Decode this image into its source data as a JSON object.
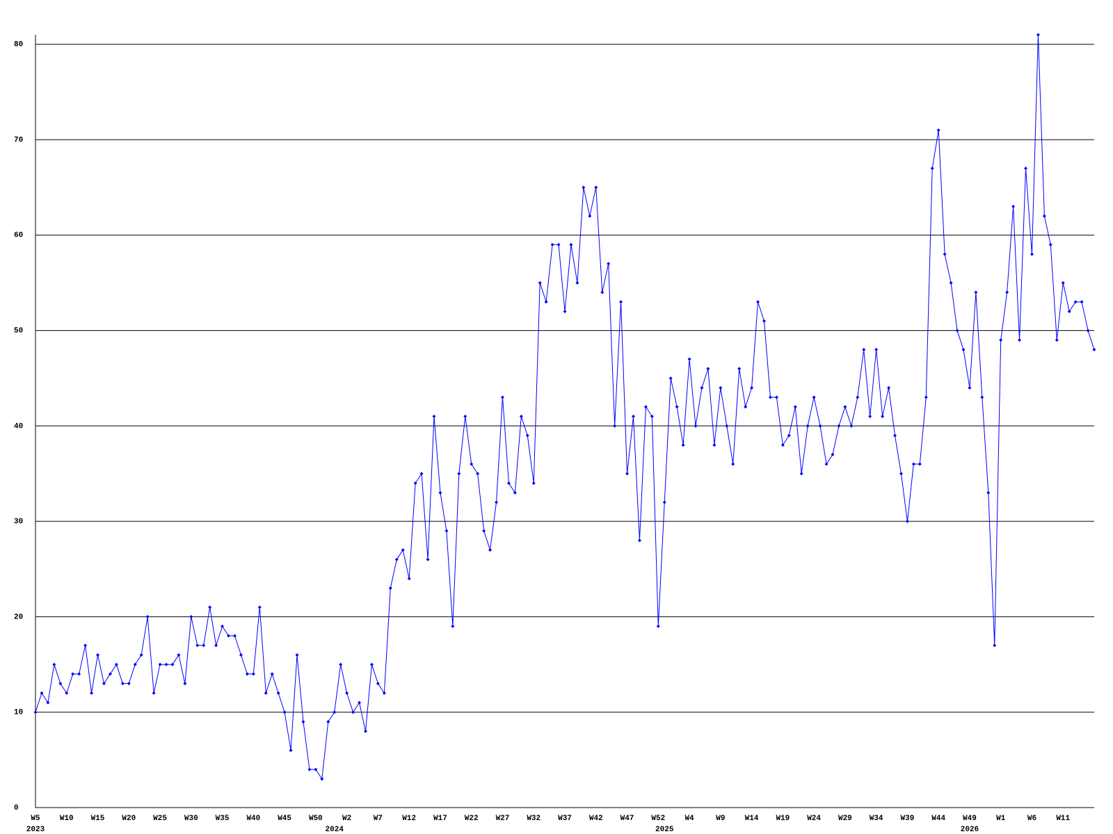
{
  "chart_data": {
    "type": "line",
    "categories": [
      "W5",
      null,
      null,
      null,
      null,
      "W10",
      null,
      null,
      null,
      null,
      "W15",
      null,
      null,
      null,
      null,
      "W20",
      null,
      null,
      null,
      null,
      "W25",
      null,
      null,
      null,
      null,
      "W30",
      null,
      null,
      null,
      null,
      "W35",
      null,
      null,
      null,
      null,
      "W40",
      null,
      null,
      null,
      null,
      "W45",
      null,
      null,
      null,
      null,
      "W50",
      null,
      null,
      null,
      null,
      "W2",
      null,
      null,
      null,
      null,
      "W7",
      null,
      null,
      null,
      null,
      "W12",
      null,
      null,
      null,
      null,
      "W17",
      null,
      null,
      null,
      null,
      "W22",
      null,
      null,
      null,
      null,
      "W27",
      null,
      null,
      null,
      null,
      "W32",
      null,
      null,
      null,
      null,
      "W37",
      null,
      null,
      null,
      null,
      "W42",
      null,
      null,
      null,
      null,
      "W47",
      null,
      null,
      null,
      null,
      "W52",
      null,
      null,
      null,
      null,
      "W4",
      null,
      null,
      null,
      null,
      "W9",
      null,
      null,
      null,
      null,
      "W14",
      null,
      null,
      null,
      null,
      "W19",
      null,
      null,
      null,
      null,
      "W24",
      null,
      null,
      null,
      null,
      "W29",
      null,
      null,
      null,
      null,
      "W34",
      null,
      null,
      null,
      null,
      "W39",
      null,
      null,
      null,
      null,
      "W44",
      null,
      null,
      null,
      null,
      "W49",
      null,
      null,
      null,
      null,
      "W1",
      null,
      null,
      null,
      null,
      "W6",
      null,
      null,
      null,
      null,
      "W11",
      null,
      null,
      null,
      null,
      null
    ],
    "year_labels": [
      "2023",
      null,
      null,
      null,
      null,
      null,
      null,
      null,
      null,
      null,
      null,
      null,
      null,
      null,
      null,
      null,
      null,
      null,
      null,
      null,
      null,
      null,
      null,
      null,
      null,
      null,
      null,
      null,
      null,
      null,
      null,
      null,
      null,
      null,
      null,
      null,
      null,
      null,
      null,
      null,
      null,
      null,
      null,
      null,
      null,
      null,
      null,
      null,
      "2024",
      null,
      null,
      null,
      null,
      null,
      null,
      null,
      null,
      null,
      null,
      null,
      null,
      null,
      null,
      null,
      null,
      null,
      null,
      null,
      null,
      null,
      null,
      null,
      null,
      null,
      null,
      null,
      null,
      null,
      null,
      null,
      null,
      null,
      null,
      null,
      null,
      null,
      null,
      null,
      null,
      null,
      null,
      null,
      null,
      null,
      null,
      null,
      null,
      null,
      null,
      null,
      null,
      "2025",
      null,
      null,
      null,
      null,
      null,
      null,
      null,
      null,
      null,
      null,
      null,
      null,
      null,
      null,
      null,
      null,
      null,
      null,
      null,
      null,
      null,
      null,
      null,
      null,
      null,
      null,
      null,
      null,
      null,
      null,
      null,
      null,
      null,
      null,
      null,
      null,
      null,
      null,
      null,
      null,
      null,
      null,
      null,
      null,
      null,
      null,
      null,
      null,
      "2026",
      null,
      null,
      null,
      null,
      null,
      null,
      null,
      null,
      null,
      null,
      null,
      null,
      null,
      null,
      null
    ],
    "series": [
      {
        "color": "#0000ff",
        "values": [
          10,
          12,
          11,
          15,
          13,
          12,
          14,
          14,
          17,
          12,
          16,
          13,
          14,
          15,
          13,
          13,
          15,
          16,
          20,
          12,
          15,
          15,
          15,
          16,
          13,
          20,
          17,
          17,
          21,
          17,
          19,
          18,
          18,
          16,
          14,
          14,
          21,
          12,
          14,
          12,
          10,
          6,
          16,
          9,
          4,
          4,
          3,
          9,
          10,
          15,
          12,
          10,
          11,
          8,
          15,
          13,
          12,
          23,
          26,
          27,
          24,
          34,
          35,
          26,
          41,
          33,
          29,
          19,
          35,
          41,
          36,
          35,
          29,
          27,
          32,
          43,
          34,
          33,
          41,
          39,
          34,
          55,
          53,
          59,
          59,
          52,
          59,
          55,
          65,
          62,
          65,
          54,
          57,
          40,
          53,
          35,
          41,
          28,
          42,
          41,
          19,
          32,
          45,
          42,
          38,
          47,
          40,
          44,
          46,
          38,
          44,
          40,
          36,
          46,
          42,
          44,
          53,
          51,
          43,
          43,
          38,
          39,
          42,
          35,
          40,
          43,
          40,
          36,
          37,
          40,
          42,
          40,
          43,
          48,
          41,
          48,
          41,
          44,
          39,
          35,
          30,
          36,
          36,
          43,
          67,
          71,
          58,
          55,
          50,
          48,
          44,
          54,
          43,
          33,
          17,
          49,
          54,
          63,
          49,
          67,
          58,
          81,
          62,
          59,
          49,
          55,
          52,
          53,
          53,
          50,
          48
        ]
      }
    ],
    "ylim": [
      0,
      81
    ],
    "yticks": [
      0,
      10,
      20,
      30,
      40,
      50,
      60,
      70,
      80
    ],
    "grid": true
  }
}
